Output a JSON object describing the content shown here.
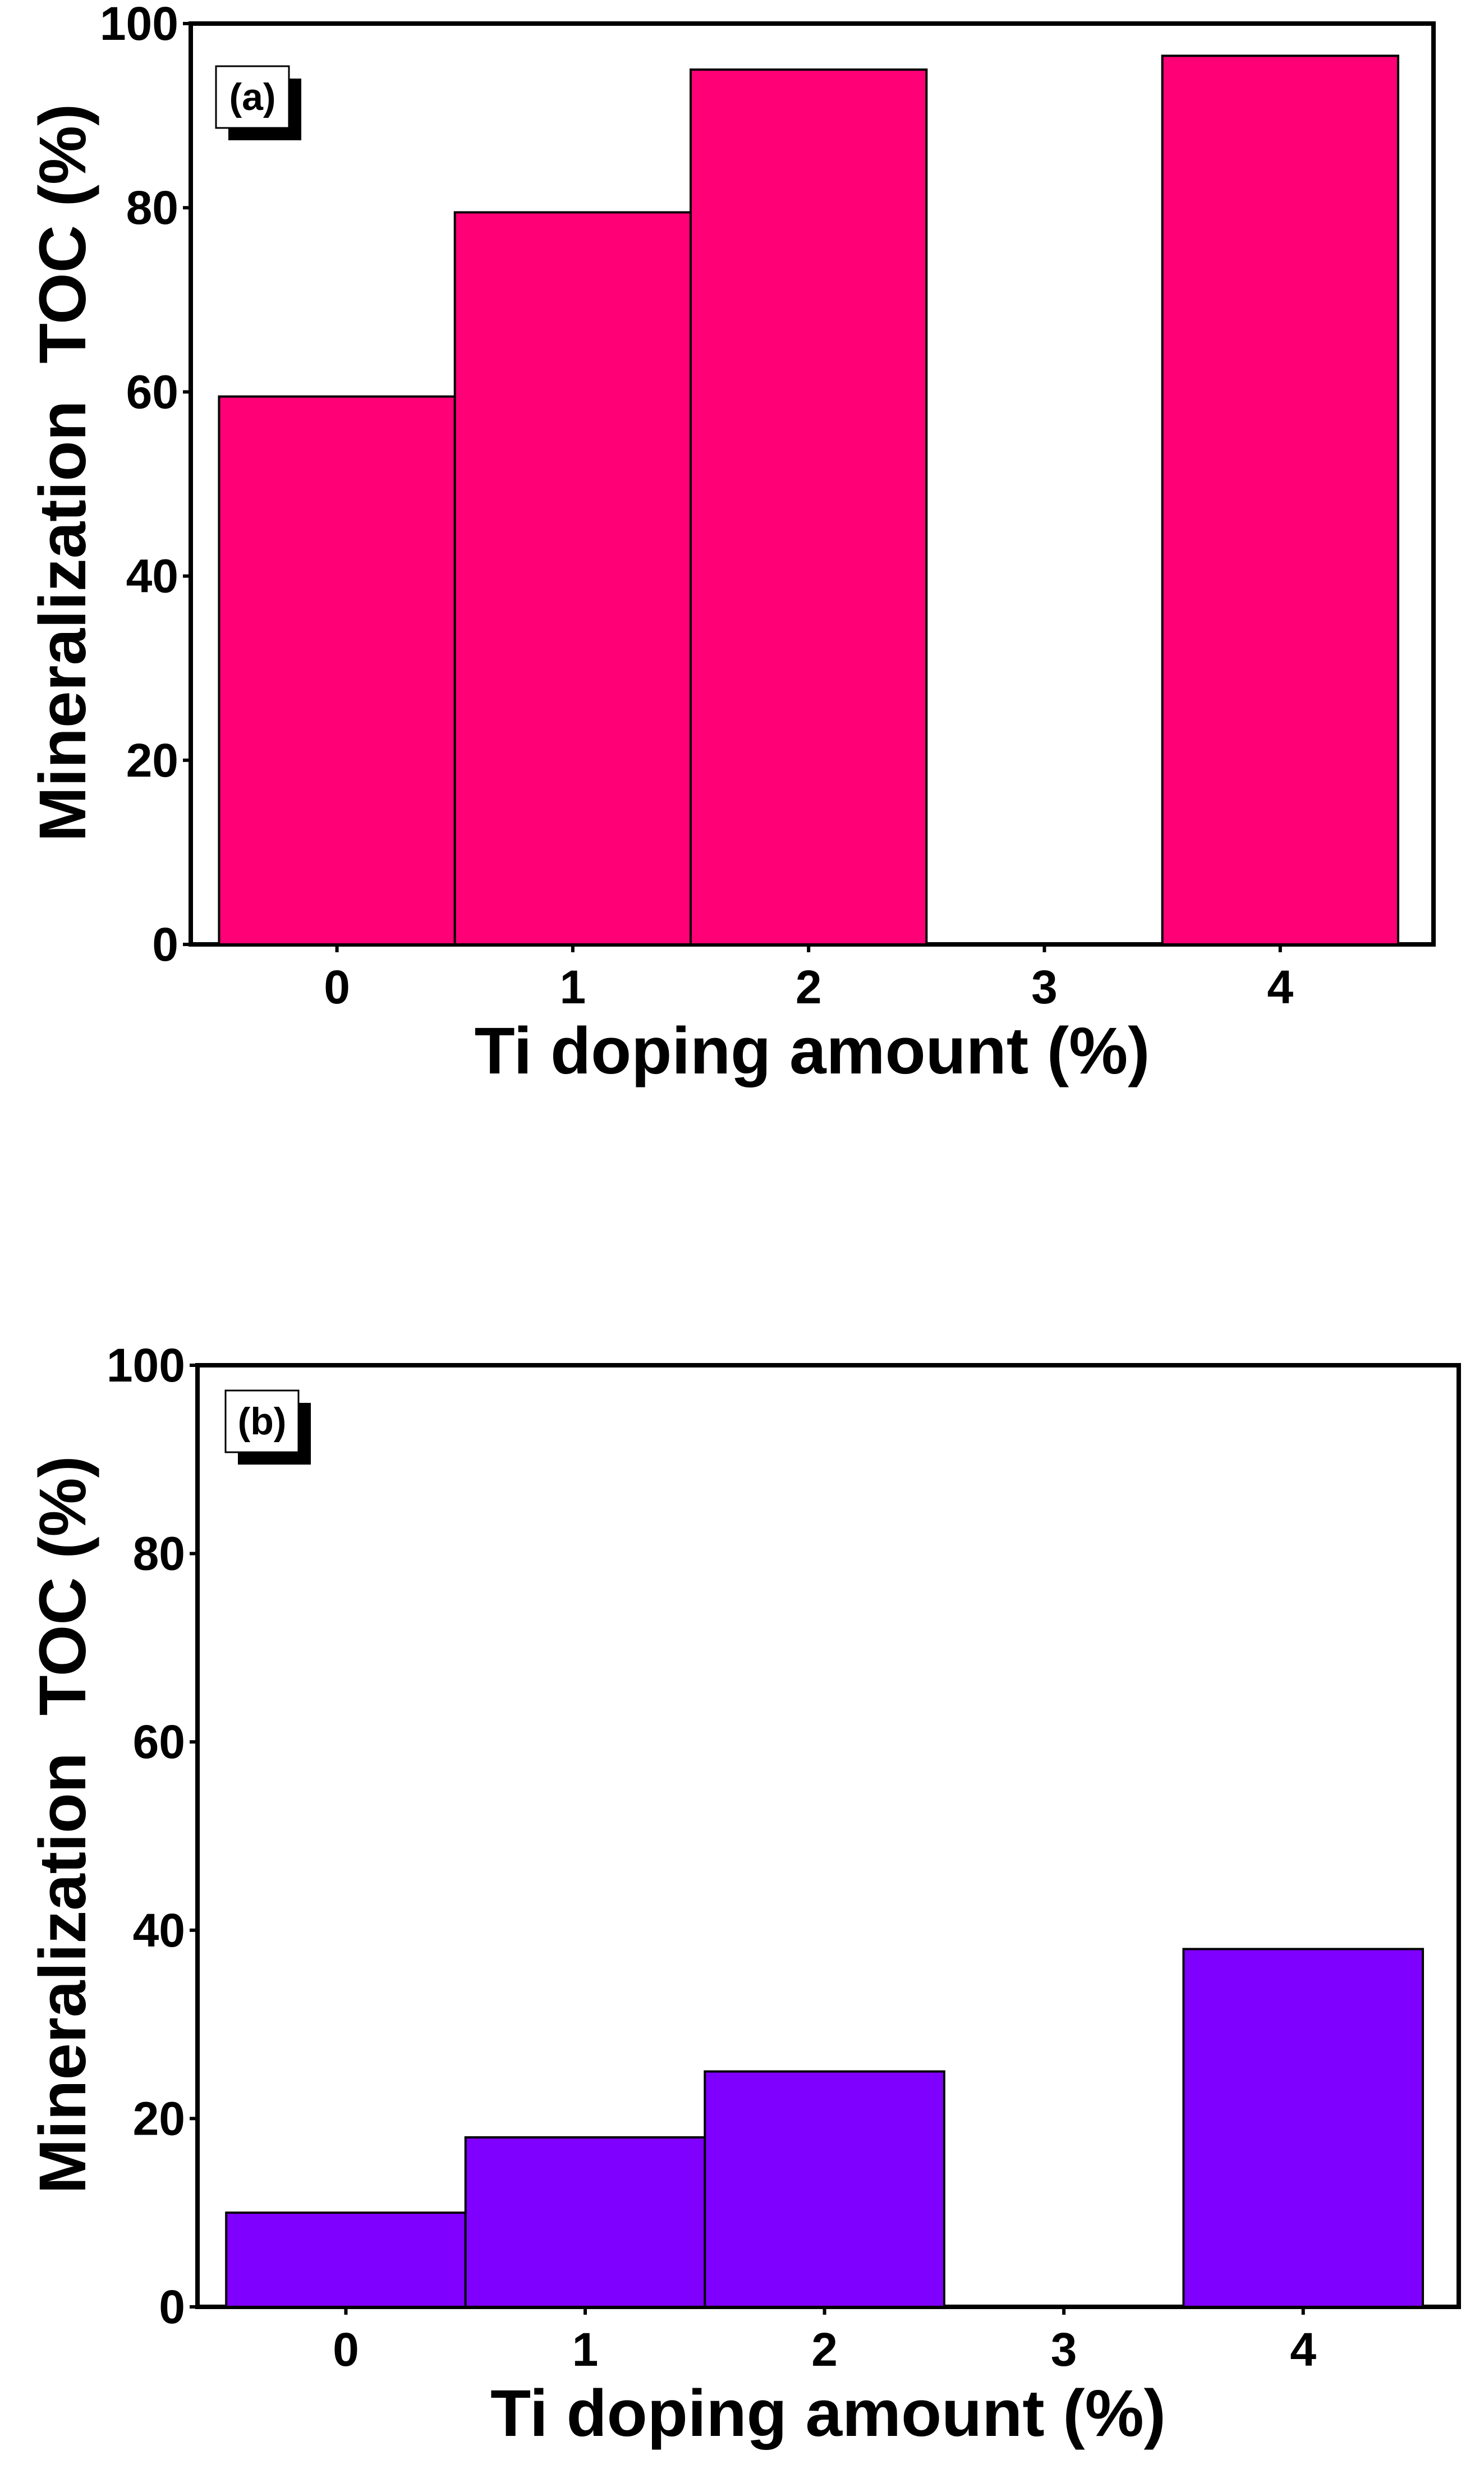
{
  "chart_data": [
    {
      "type": "bar",
      "panel_label": "(a)",
      "title": "",
      "xlabel": "Ti doping amount (%)",
      "ylabel": "Mineralization  TOC (%)",
      "categories": [
        "0",
        "1",
        "2",
        "3",
        "4"
      ],
      "values": [
        59.5,
        79.5,
        95,
        0,
        96.5
      ],
      "ylim": [
        0,
        100
      ],
      "yticks": [
        "0",
        "20",
        "40",
        "60",
        "80",
        "100"
      ],
      "bar_color": "#ff0077",
      "grid": false
    },
    {
      "type": "bar",
      "panel_label": "(b)",
      "title": "",
      "xlabel": "Ti doping amount (%)",
      "ylabel": "Mineralization  TOC (%)",
      "categories": [
        "0",
        "1",
        "2",
        "3",
        "4"
      ],
      "values": [
        10,
        18,
        25,
        0,
        38
      ],
      "ylim": [
        0,
        100
      ],
      "yticks": [
        "0",
        "20",
        "40",
        "60",
        "80",
        "100"
      ],
      "bar_color": "#8000ff",
      "grid": false
    }
  ]
}
